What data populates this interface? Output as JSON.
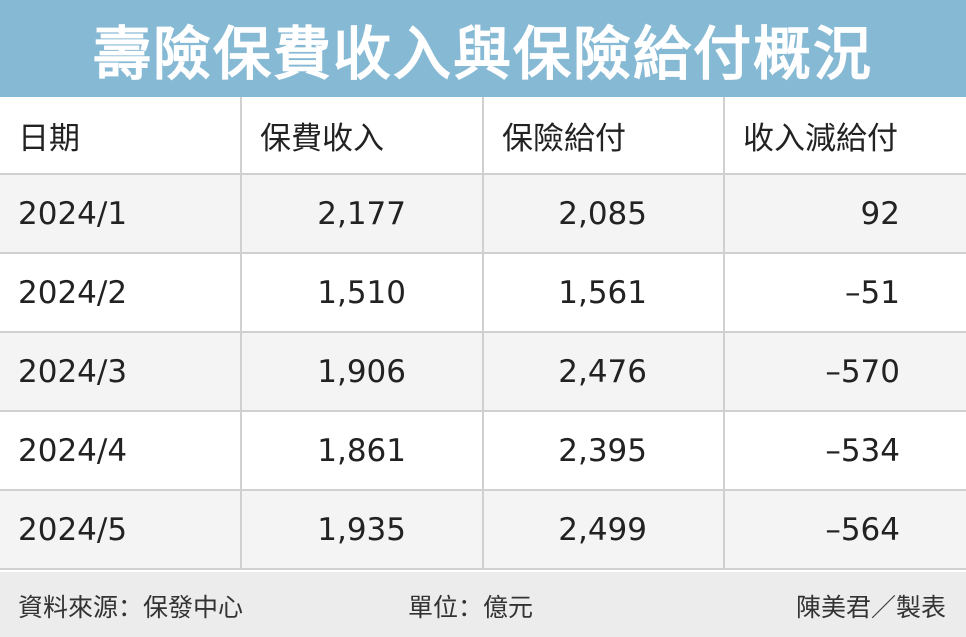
{
  "title": "壽險保費收入與保險給付概況",
  "chart_data": {
    "type": "table",
    "title": "壽險保費收入與保險給付概況",
    "columns": [
      "日期",
      "保費收入",
      "保險給付",
      "收入減給付"
    ],
    "rows": [
      [
        "2024/1",
        "2,177",
        "2,085",
        "92"
      ],
      [
        "2024/2",
        "1,510",
        "1,561",
        "–51"
      ],
      [
        "2024/3",
        "1,906",
        "2,476",
        "–570"
      ],
      [
        "2024/4",
        "1,861",
        "2,395",
        "–534"
      ],
      [
        "2024/5",
        "1,935",
        "2,499",
        "–564"
      ]
    ]
  },
  "footer": {
    "source": "資料來源：保發中心",
    "unit": "單位：億元",
    "credit": "陳美君／製表"
  },
  "colors": {
    "title_bar": "#86b9d4",
    "row_shade": "#f4f4f4",
    "footer_bg": "#ececec"
  }
}
